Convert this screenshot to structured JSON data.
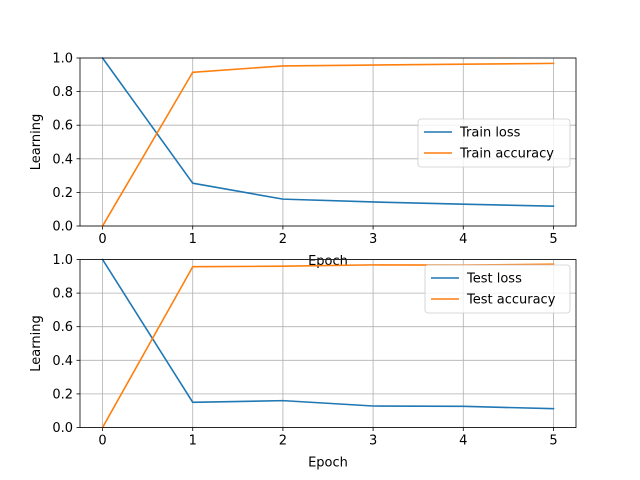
{
  "chart_data": [
    {
      "type": "line",
      "xlabel": "Epoch",
      "ylabel": "Learning",
      "xlim": [
        -0.25,
        5.25
      ],
      "ylim": [
        0,
        1
      ],
      "xticks": [
        0,
        1,
        2,
        3,
        4,
        5
      ],
      "yticks": [
        0.0,
        0.2,
        0.4,
        0.6,
        0.8,
        1.0
      ],
      "xtick_labels": [
        "0",
        "1",
        "2",
        "3",
        "4",
        "5"
      ],
      "ytick_labels": [
        "0.0",
        "0.2",
        "0.4",
        "0.6",
        "0.8",
        "1.0"
      ],
      "grid": true,
      "legend_position": "center-right",
      "x": [
        0,
        1,
        2,
        3,
        4,
        5
      ],
      "series": [
        {
          "name": "Train loss",
          "color": "#1f77b4",
          "values": [
            1.0,
            0.255,
            0.16,
            0.143,
            0.13,
            0.118
          ]
        },
        {
          "name": "Train accuracy",
          "color": "#ff7f0e",
          "values": [
            0.0,
            0.915,
            0.953,
            0.958,
            0.963,
            0.968
          ]
        }
      ]
    },
    {
      "type": "line",
      "xlabel": "Epoch",
      "ylabel": "Learning",
      "xlim": [
        -0.25,
        5.25
      ],
      "ylim": [
        0,
        1
      ],
      "xticks": [
        0,
        1,
        2,
        3,
        4,
        5
      ],
      "yticks": [
        0.0,
        0.2,
        0.4,
        0.6,
        0.8,
        1.0
      ],
      "xtick_labels": [
        "0",
        "1",
        "2",
        "3",
        "4",
        "5"
      ],
      "ytick_labels": [
        "0.0",
        "0.2",
        "0.4",
        "0.6",
        "0.8",
        "1.0"
      ],
      "grid": true,
      "legend_position": "upper-right",
      "x": [
        0,
        1,
        2,
        3,
        4,
        5
      ],
      "series": [
        {
          "name": "Test loss",
          "color": "#1f77b4",
          "values": [
            1.0,
            0.15,
            0.16,
            0.128,
            0.126,
            0.112
          ]
        },
        {
          "name": "Test accuracy",
          "color": "#ff7f0e",
          "values": [
            0.0,
            0.957,
            0.96,
            0.968,
            0.967,
            0.972
          ]
        }
      ]
    }
  ]
}
